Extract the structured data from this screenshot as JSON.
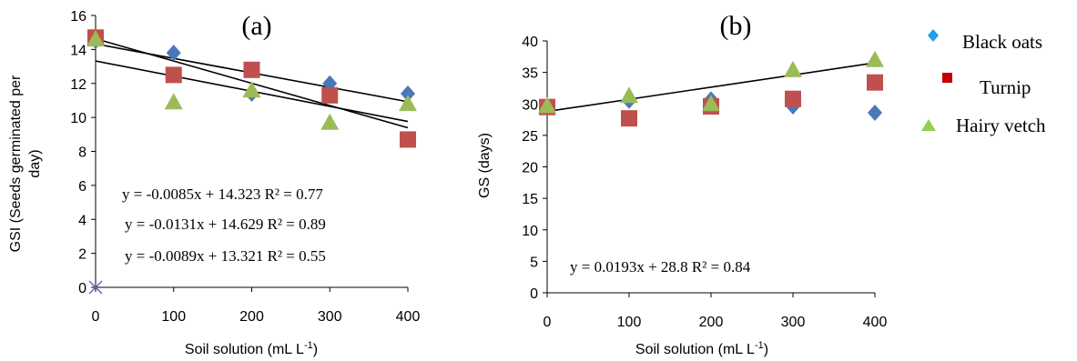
{
  "colors": {
    "black_oats": "#4a78b8",
    "turnip": "#c0504d",
    "hairy_vetch": "#9bbb59",
    "legend_black_oats": "#1ea0e6",
    "legend_turnip": "#c00000",
    "legend_hairy_vetch": "#92d050",
    "origin_marker": "#7b5ea7",
    "axis": "#000000"
  },
  "legend": {
    "position": "right",
    "items": [
      {
        "label": "Black oats",
        "marker": "diamond"
      },
      {
        "label": "Turnip",
        "marker": "square"
      },
      {
        "label": "Hairy vetch",
        "marker": "triangle"
      }
    ]
  },
  "chart_data": [
    {
      "type": "scatter",
      "panel_label": "(a)",
      "xlabel": "Soil solution (mL L",
      "xlabel_sup": "-1",
      "xlabel_end": ")",
      "ylabel_line1": "GSI (Seeds germinated per",
      "ylabel_line2": "day)",
      "xlim": [
        0,
        400
      ],
      "ylim": [
        0,
        16
      ],
      "x_ticks": [
        "0",
        "100",
        "200",
        "300",
        "400"
      ],
      "y_ticks": [
        "0",
        "2",
        "4",
        "6",
        "8",
        "10",
        "12",
        "14",
        "16"
      ],
      "grid": false,
      "x": [
        0,
        100,
        200,
        300,
        400
      ],
      "series": [
        {
          "name": "Black oats",
          "values": [
            14.5,
            13.8,
            11.4,
            12.0,
            11.4
          ]
        },
        {
          "name": "Turnip",
          "values": [
            14.7,
            12.5,
            12.8,
            11.3,
            8.7
          ]
        },
        {
          "name": "Hairy vetch",
          "values": [
            14.6,
            10.9,
            11.6,
            9.7,
            10.8
          ]
        }
      ],
      "trendlines": [
        {
          "slope": -0.0085,
          "intercept": 14.323
        },
        {
          "slope": -0.0131,
          "intercept": 14.629
        },
        {
          "slope": -0.0089,
          "intercept": 13.321
        }
      ],
      "equations": [
        "y = -0.0085x + 14.323 R² = 0.77",
        "y = -0.0131x + 14.629 R² = 0.89",
        "y = -0.0089x + 13.321 R² = 0.55"
      ],
      "origin_marker": {
        "x": 0,
        "y": 0
      }
    },
    {
      "type": "scatter",
      "panel_label": "(b)",
      "xlabel": "Soil solution (mL L",
      "xlabel_sup": "-1",
      "xlabel_end": ")",
      "ylabel": "GS  (days)",
      "xlim": [
        0,
        400
      ],
      "ylim": [
        0,
        40
      ],
      "x_ticks": [
        "0",
        "100",
        "200",
        "300",
        "400"
      ],
      "y_ticks": [
        "0",
        "5",
        "10",
        "15",
        "20",
        "25",
        "30",
        "35",
        "40"
      ],
      "grid": false,
      "x": [
        0,
        100,
        200,
        300,
        400
      ],
      "series": [
        {
          "name": "Black oats",
          "values": [
            29.5,
            30.5,
            30.7,
            29.6,
            28.6
          ]
        },
        {
          "name": "Turnip",
          "values": [
            29.5,
            27.7,
            29.6,
            30.8,
            33.4
          ]
        },
        {
          "name": "Hairy vetch",
          "values": [
            29.7,
            31.3,
            30.0,
            35.4,
            37.0
          ]
        }
      ],
      "trendlines": [
        {
          "slope": 0.0193,
          "intercept": 28.8
        }
      ],
      "equations": [
        "y = 0.0193x + 28.8 R² = 0.84"
      ]
    }
  ]
}
